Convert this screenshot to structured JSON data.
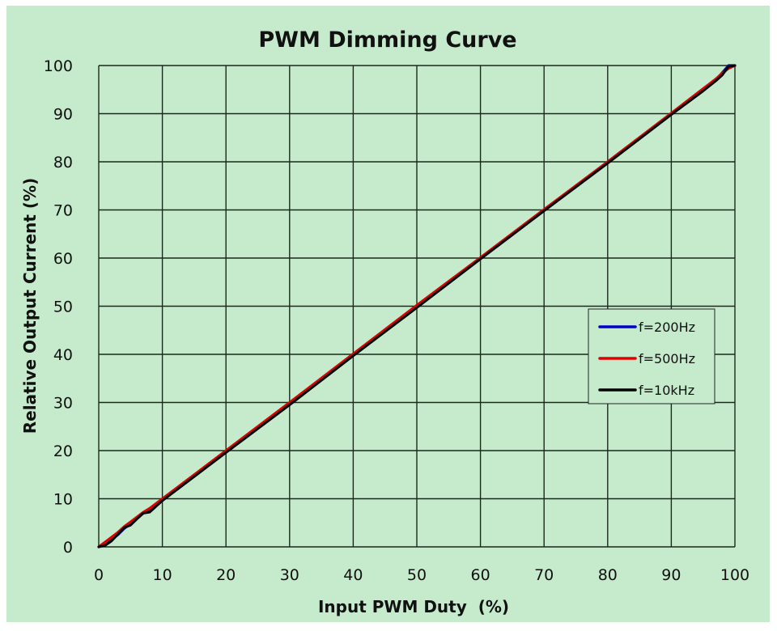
{
  "chart_data": {
    "type": "line",
    "title": "PWM Dimming Curve",
    "xlabel": "Input PWM Duty  (%)",
    "ylabel": "Relative Output Current (%)",
    "xlim": [
      0,
      100
    ],
    "ylim": [
      0,
      100
    ],
    "xticks": [
      0,
      10,
      20,
      30,
      40,
      50,
      60,
      70,
      80,
      90,
      100
    ],
    "yticks": [
      0,
      10,
      20,
      30,
      40,
      50,
      60,
      70,
      80,
      90,
      100
    ],
    "grid": true,
    "legend_position": "center-right",
    "series": [
      {
        "name": "f=200Hz",
        "color": "#0000cc",
        "x": [
          0,
          1,
          2,
          3,
          4,
          5,
          7,
          8,
          10,
          20,
          30,
          40,
          50,
          60,
          70,
          80,
          90,
          95,
          97,
          98,
          99,
          100
        ],
        "y": [
          0,
          0.5,
          1.5,
          2.5,
          3.8,
          4.8,
          7,
          7.6,
          9.8,
          19.8,
          29.8,
          39.9,
          50,
          60,
          70,
          80,
          90,
          95,
          97,
          98.5,
          100,
          100
        ]
      },
      {
        "name": "f=500Hz",
        "color": "#e00000",
        "x": [
          0,
          1,
          2,
          3,
          4,
          5,
          7,
          8,
          10,
          20,
          30,
          40,
          50,
          60,
          70,
          80,
          90,
          95,
          97,
          98,
          99,
          100
        ],
        "y": [
          0,
          1,
          2,
          3,
          4.2,
          5.2,
          7.2,
          8,
          10,
          20,
          30,
          40.1,
          50.2,
          60.1,
          70.1,
          80,
          90.1,
          95.2,
          97.2,
          98.4,
          99.4,
          100
        ]
      },
      {
        "name": "f=10kHz",
        "color": "#000000",
        "x": [
          0,
          1,
          2,
          3,
          4,
          5,
          6,
          7,
          8,
          10,
          20,
          30,
          40,
          50,
          60,
          70,
          80,
          90,
          95,
          97,
          98,
          99,
          100
        ],
        "y": [
          0,
          0.3,
          1.2,
          2.6,
          4,
          4.5,
          5.8,
          7,
          7.2,
          9.6,
          19.6,
          29.5,
          39.7,
          49.7,
          59.8,
          69.8,
          79.7,
          89.8,
          94.7,
          96.8,
          98,
          99.8,
          100
        ]
      }
    ]
  },
  "colors": {
    "background": "#c6ebcc",
    "grid": "#1a2a1a"
  }
}
